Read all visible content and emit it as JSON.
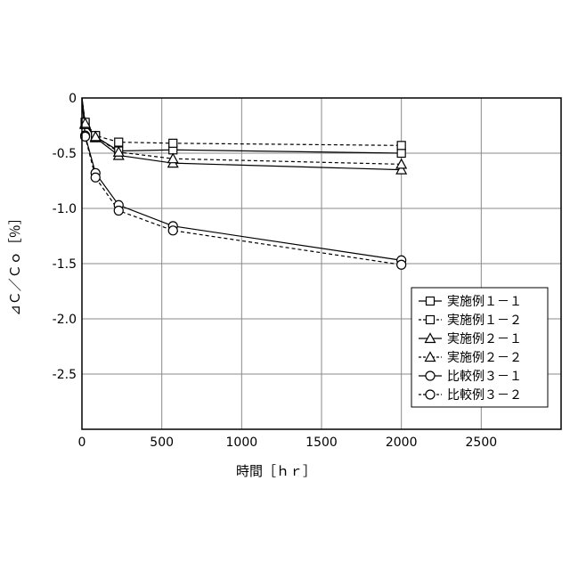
{
  "chart_data": {
    "type": "line",
    "title": "",
    "xlabel": "時間［ｈｒ］",
    "ylabel": "⊿Ｃ／Ｃｏ［％］",
    "xlim": [
      0,
      3000
    ],
    "ylim": [
      -3.0,
      0
    ],
    "xticks": [
      "0",
      "500",
      "1000",
      "1500",
      "2000",
      "2500"
    ],
    "xtick_values": [
      0,
      500,
      1000,
      1500,
      2000,
      2500
    ],
    "yticks": [
      "0",
      "-0.5",
      "-1.0",
      "-1.5",
      "-2.0",
      "-2.5"
    ],
    "ytick_values": [
      0,
      -0.5,
      -1.0,
      -1.5,
      -2.0,
      -2.5
    ],
    "grid": true,
    "legend_position": "bottom-right",
    "series": [
      {
        "name": "実施例１－１",
        "marker": "square",
        "dash": "solid",
        "x": [
          0,
          20,
          85,
          230,
          570,
          2000
        ],
        "y": [
          0,
          -0.23,
          -0.35,
          -0.48,
          -0.47,
          -0.5
        ]
      },
      {
        "name": "実施例１－２",
        "marker": "square",
        "dash": "dashed",
        "x": [
          0,
          20,
          85,
          230,
          570,
          2000
        ],
        "y": [
          0,
          -0.22,
          -0.34,
          -0.4,
          -0.41,
          -0.43
        ]
      },
      {
        "name": "実施例２－１",
        "marker": "triangle",
        "dash": "solid",
        "x": [
          0,
          20,
          85,
          230,
          570,
          2000
        ],
        "y": [
          0,
          -0.24,
          -0.36,
          -0.52,
          -0.59,
          -0.65
        ]
      },
      {
        "name": "実施例２－２",
        "marker": "triangle",
        "dash": "dashed",
        "x": [
          0,
          20,
          85,
          230,
          570,
          2000
        ],
        "y": [
          0,
          -0.23,
          -0.35,
          -0.49,
          -0.55,
          -0.6
        ]
      },
      {
        "name": "比較例３－１",
        "marker": "circle",
        "dash": "solid",
        "x": [
          0,
          20,
          85,
          230,
          570,
          2000
        ],
        "y": [
          0,
          -0.34,
          -0.68,
          -0.97,
          -1.16,
          -1.47
        ]
      },
      {
        "name": "比較例３－２",
        "marker": "circle",
        "dash": "dashed",
        "x": [
          0,
          20,
          85,
          230,
          570,
          2000
        ],
        "y": [
          0,
          -0.35,
          -0.72,
          -1.02,
          -1.2,
          -1.51
        ]
      }
    ]
  }
}
